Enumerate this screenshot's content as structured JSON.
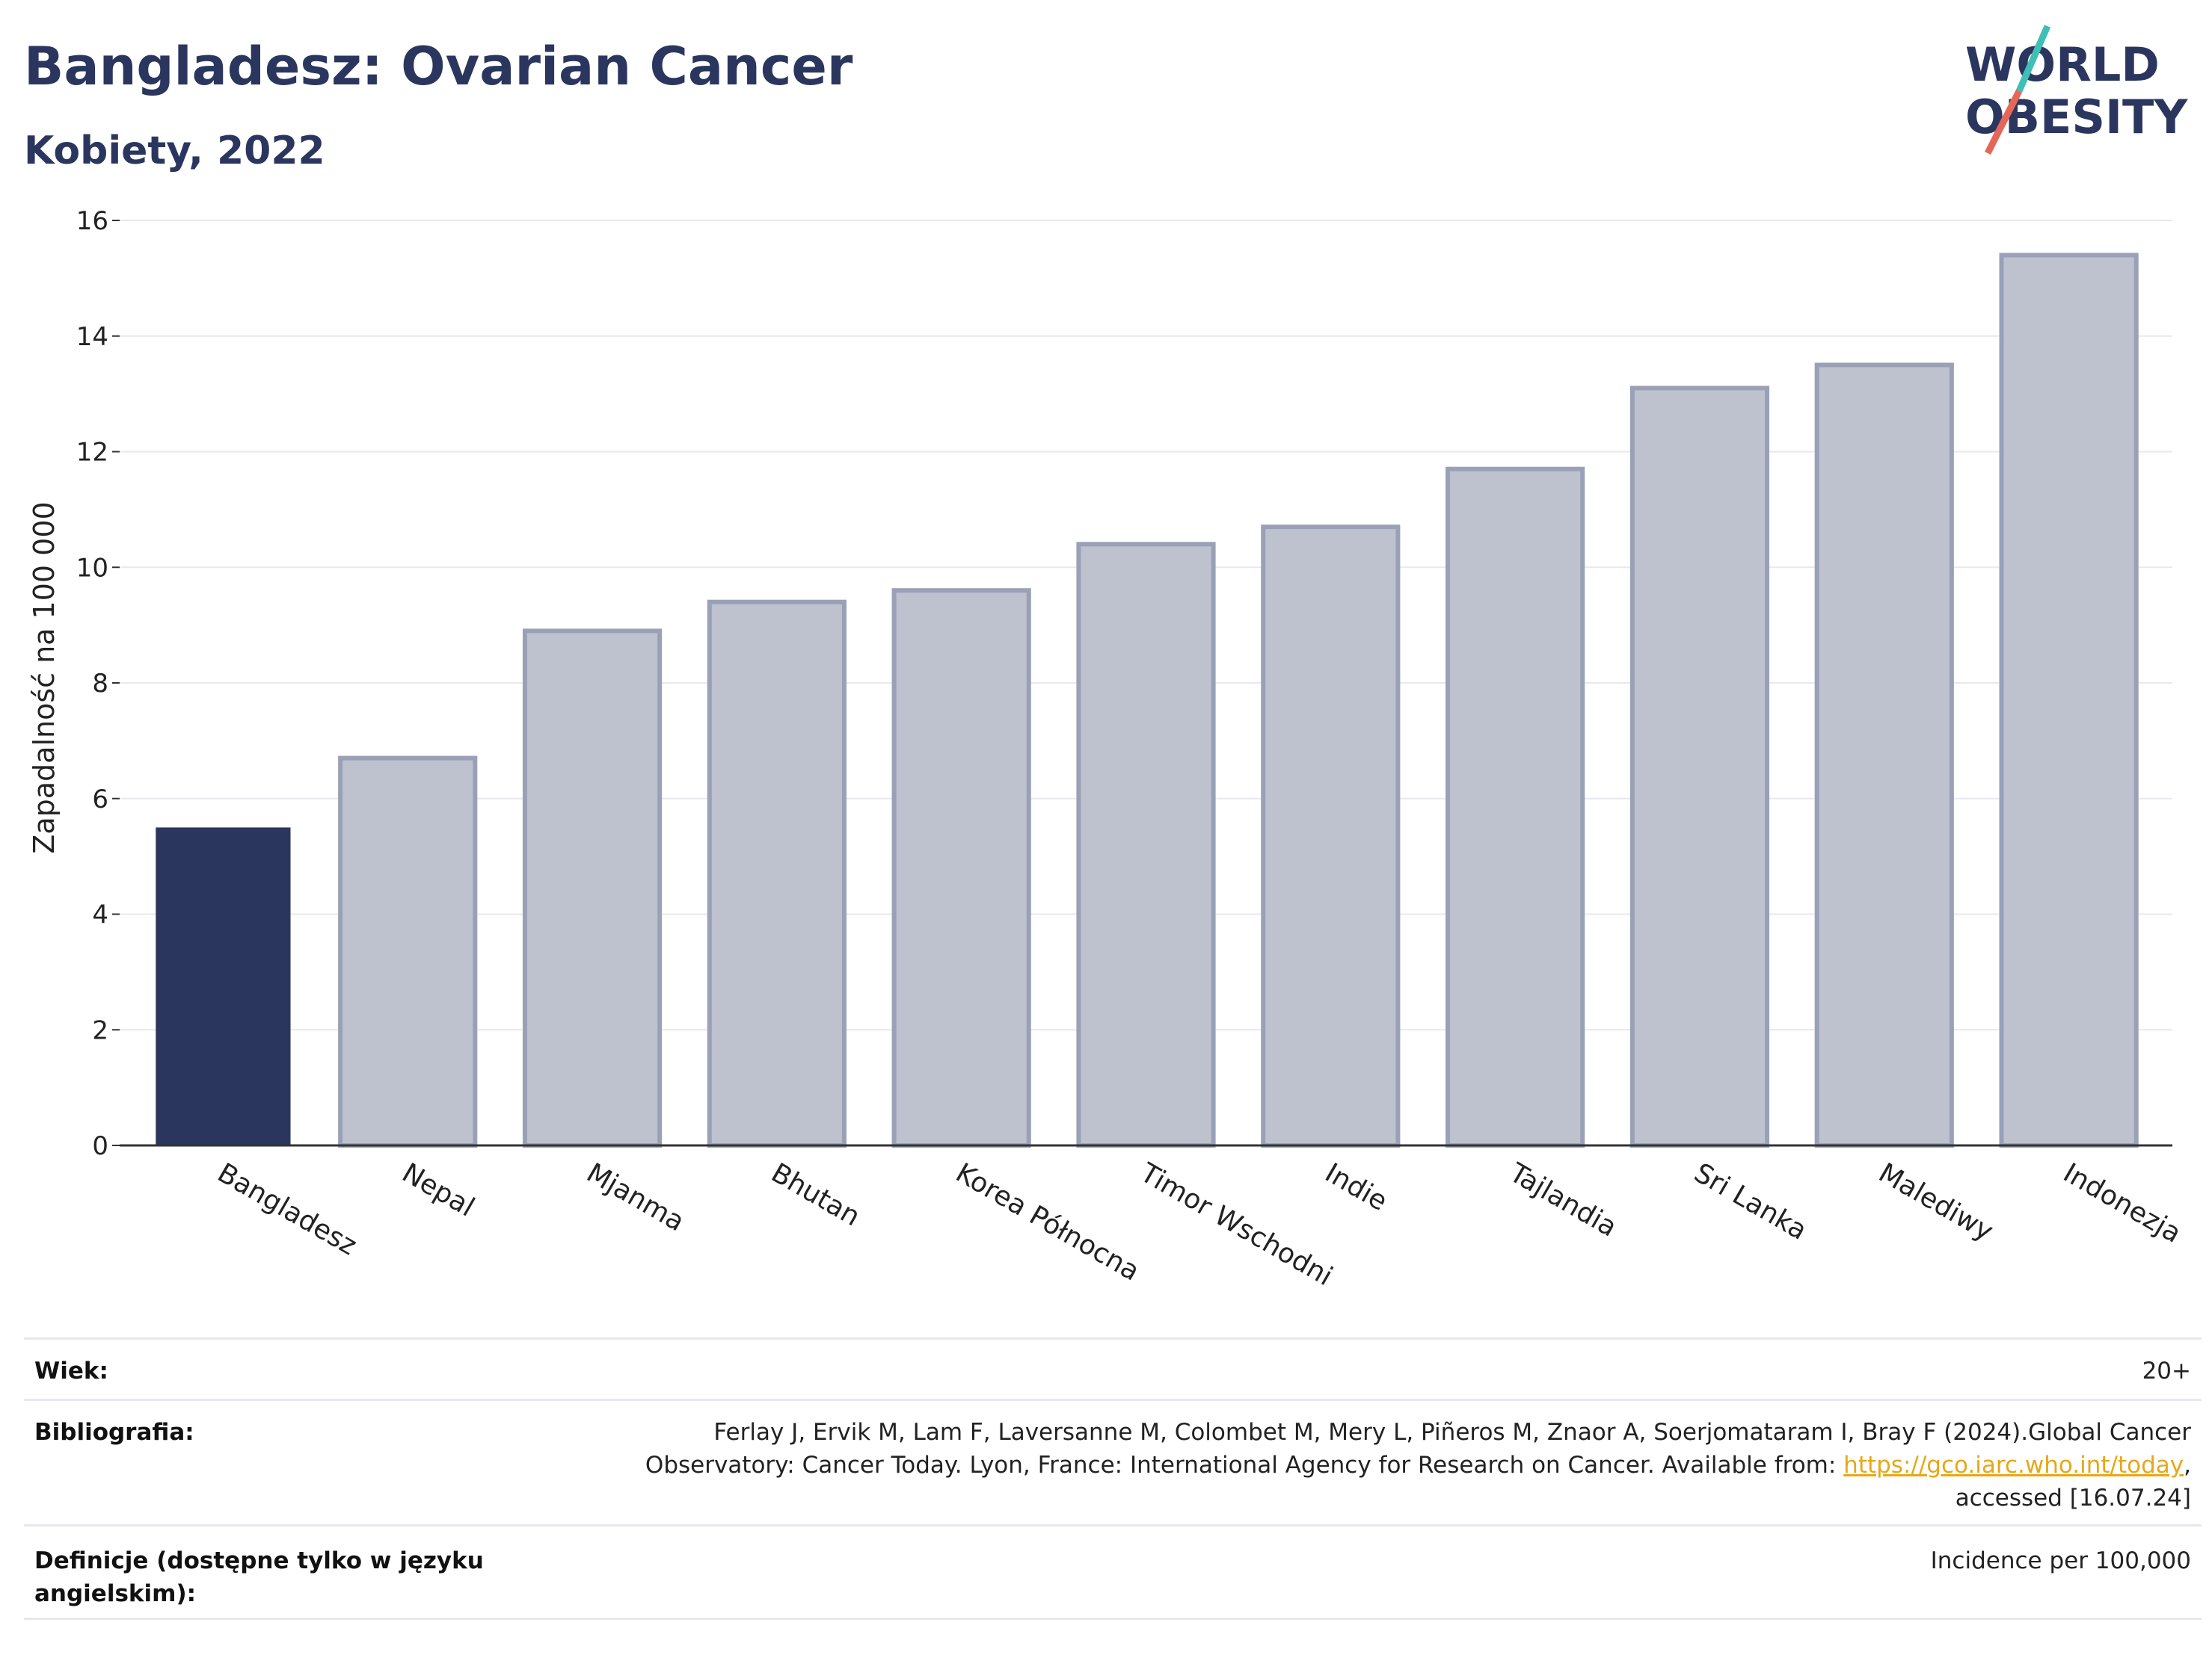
{
  "title": "Bangladesz: Ovarian Cancer",
  "subtitle": "Kobiety, 2022",
  "logo": {
    "line1": "WORLD",
    "line2": "OBESITY"
  },
  "colors": {
    "highlight": "#2b365f",
    "bar": "#bec2cf",
    "bar_stroke": "#9aa0b6",
    "title": "#2b365f",
    "accent_teal": "#3fbfb5",
    "accent_red": "#e5675a"
  },
  "chart_data": {
    "type": "bar",
    "ylabel": "Zapadalność na 100 000",
    "xlabel": "",
    "ylim": [
      0,
      16
    ],
    "yticks": [
      0,
      2,
      4,
      6,
      8,
      10,
      12,
      14,
      16
    ],
    "grid": true,
    "highlight_index": 0,
    "categories": [
      "Bangladesz",
      "Nepal",
      "Mjanma",
      "Bhutan",
      "Korea Północna",
      "Timor Wschodni",
      "Indie",
      "Tajlandia",
      "Sri Lanka",
      "Malediwy",
      "Indonezja"
    ],
    "values": [
      5.5,
      6.7,
      8.9,
      9.4,
      9.6,
      10.4,
      10.7,
      11.7,
      13.1,
      13.5,
      15.4
    ]
  },
  "meta": {
    "age_label": "Wiek:",
    "age_value": "20+",
    "bib_label": "Bibliografia:",
    "bib_line1": "Ferlay J, Ervik M, Lam F, Laversanne M, Colombet M, Mery L, Piñeros M, Znaor A, Soerjomataram I, Bray F (2024).Global Cancer",
    "bib_line2_pre": "Observatory: Cancer Today. Lyon, France: International Agency for Research on Cancer. Available from: ",
    "bib_link": "https://gco.iarc.who.int/today",
    "bib_line2_post": ",",
    "bib_line3": "accessed [16.07.24]",
    "def_label": "Definicje (dostępne tylko w języku angielskim):",
    "def_value": "Incidence per 100,000"
  }
}
